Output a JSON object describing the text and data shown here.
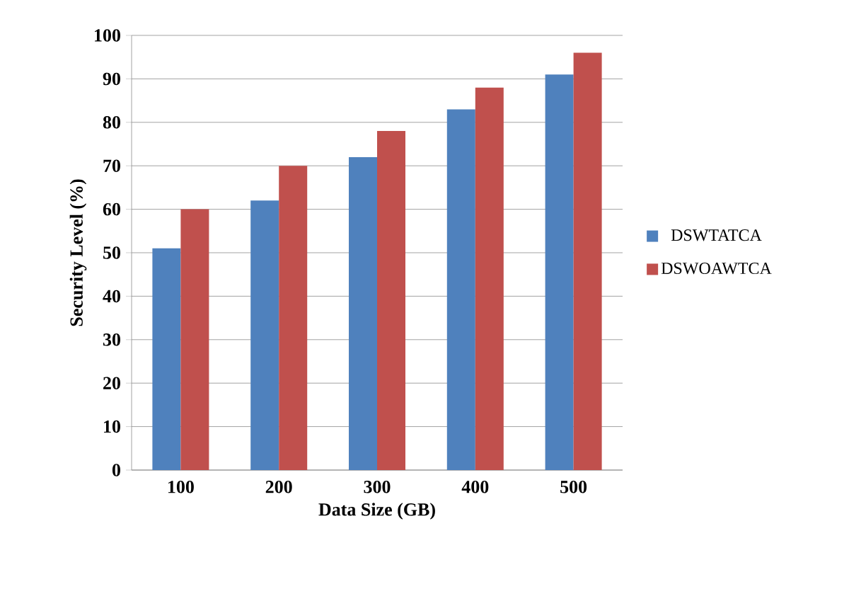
{
  "chart_data": {
    "type": "bar",
    "xlabel": "Data Size (GB)",
    "ylabel": "Security Level (%)",
    "categories": [
      "100",
      "200",
      "300",
      "400",
      "500"
    ],
    "series": [
      {
        "name": "DSWTATCA",
        "color": "#4f81bd",
        "values": [
          51,
          62,
          72,
          83,
          91
        ]
      },
      {
        "name": "DSWOAWTCA",
        "color": "#c0504d",
        "values": [
          60,
          70,
          78,
          88,
          96
        ]
      }
    ],
    "ylim": [
      0,
      100
    ],
    "yticks": [
      0,
      10,
      20,
      30,
      40,
      50,
      60,
      70,
      80,
      90,
      100
    ],
    "grid": "y",
    "legend": "right"
  }
}
